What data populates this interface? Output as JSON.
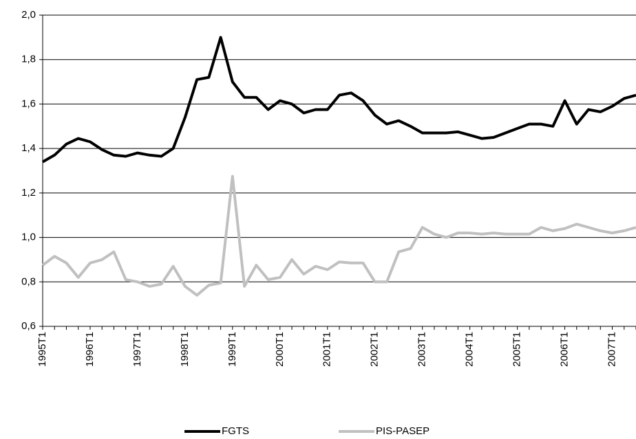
{
  "chart_data": {
    "type": "line",
    "categories": [
      "1995T1",
      null,
      null,
      null,
      "1996T1",
      null,
      null,
      null,
      "1997T1",
      null,
      null,
      null,
      "1998T1",
      null,
      null,
      null,
      "1999T1",
      null,
      null,
      null,
      "2000T1",
      null,
      null,
      null,
      "2001T1",
      null,
      null,
      null,
      "2002T1",
      null,
      null,
      null,
      "2003T1",
      null,
      null,
      null,
      "2004T1",
      null,
      null,
      null,
      "2005T1",
      null,
      null,
      null,
      "2006T1",
      null,
      null,
      null,
      "2007T1",
      null,
      null
    ],
    "series": [
      {
        "name": "FGTS",
        "color": "#000000",
        "values": [
          1.34,
          1.37,
          1.42,
          1.445,
          1.43,
          1.395,
          1.37,
          1.365,
          1.38,
          1.37,
          1.365,
          1.4,
          1.54,
          1.71,
          1.72,
          1.9,
          1.7,
          1.63,
          1.63,
          1.575,
          1.615,
          1.6,
          1.56,
          1.575,
          1.575,
          1.64,
          1.65,
          1.615,
          1.55,
          1.51,
          1.525,
          1.5,
          1.47,
          1.47,
          1.47,
          1.475,
          1.46,
          1.445,
          1.45,
          1.47,
          1.49,
          1.51,
          1.51,
          1.5,
          1.615,
          1.51,
          1.575,
          1.565,
          1.59,
          1.625,
          1.64
        ]
      },
      {
        "name": "PIS-PASEP",
        "color": "#c0c0c0",
        "values": [
          0.875,
          0.915,
          0.885,
          0.82,
          0.885,
          0.9,
          0.935,
          0.81,
          0.8,
          0.78,
          0.79,
          0.87,
          0.78,
          0.74,
          0.785,
          0.795,
          1.275,
          0.78,
          0.875,
          0.81,
          0.82,
          0.9,
          0.835,
          0.87,
          0.855,
          0.89,
          0.885,
          0.885,
          0.8,
          0.8,
          0.935,
          0.95,
          1.045,
          1.015,
          1.0,
          1.02,
          1.02,
          1.015,
          1.02,
          1.015,
          1.015,
          1.015,
          1.045,
          1.03,
          1.04,
          1.06,
          1.045,
          1.03,
          1.02,
          1.03,
          1.045
        ]
      }
    ],
    "ylim": [
      0.6,
      2.0
    ],
    "yticks": [
      {
        "value": 0.6,
        "label": "0,6"
      },
      {
        "value": 0.8,
        "label": "0,8"
      },
      {
        "value": 1.0,
        "label": "1,0"
      },
      {
        "value": 1.2,
        "label": "1,2"
      },
      {
        "value": 1.4,
        "label": "1,4"
      },
      {
        "value": 1.6,
        "label": "1,6"
      },
      {
        "value": 1.8,
        "label": "1,8"
      },
      {
        "value": 2.0,
        "label": "2,0"
      }
    ],
    "grid": true
  }
}
